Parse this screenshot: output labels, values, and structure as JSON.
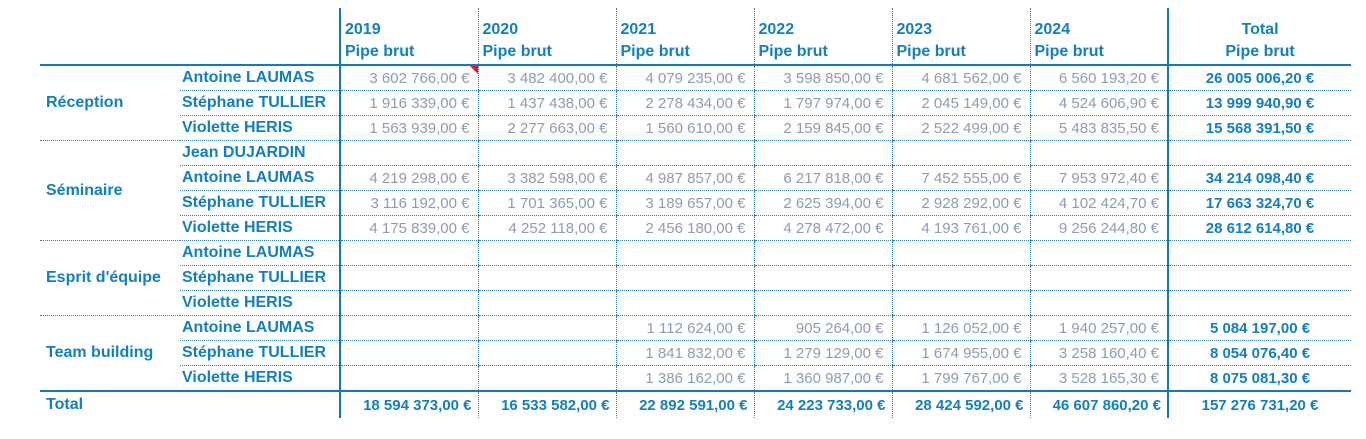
{
  "colors": {
    "accent_blue": "#117fc4",
    "value_gray_blue": "#8c9cb2",
    "solid_border": "#1577be",
    "dotted_border": "#2e80c4",
    "comment_marker_red": "#e8112d"
  },
  "header": {
    "years": [
      "2019",
      "2020",
      "2021",
      "2022",
      "2023",
      "2024"
    ],
    "measure_label": "Pipe brut",
    "total_column": {
      "label": "Total",
      "sub": "Pipe brut"
    }
  },
  "sections": [
    {
      "id": "reception",
      "category": "Réception",
      "rows": [
        {
          "name": "Antoine LAUMAS",
          "values": [
            "3 602 766,00 €",
            "3 482 400,00 €",
            "4 079 235,00 €",
            "3 598 850,00 €",
            "4 681 562,00 €",
            "6 560 193,20 €"
          ],
          "total": "26 005 006,20 €",
          "comment_cell": 0
        },
        {
          "name": "Stéphane TULLIER",
          "values": [
            "1 916 339,00 €",
            "1 437 438,00 €",
            "2 278 434,00 €",
            "1 797 974,00 €",
            "2 045 149,00 €",
            "4 524 606,90 €"
          ],
          "total": "13 999 940,90 €"
        },
        {
          "name": "Violette HERIS",
          "values": [
            "1 563 939,00 €",
            "2 277 663,00 €",
            "1 560 610,00 €",
            "2 159 845,00 €",
            "2 522 499,00 €",
            "5 483 835,50 €"
          ],
          "total": "15 568 391,50 €"
        }
      ]
    },
    {
      "id": "seminaire",
      "category": "Séminaire",
      "rows": [
        {
          "name": "Jean DUJARDIN",
          "values": [
            "",
            "",
            "",
            "",
            "",
            ""
          ],
          "total": ""
        },
        {
          "name": "Antoine LAUMAS",
          "values": [
            "4 219 298,00 €",
            "3 382 598,00 €",
            "4 987 857,00 €",
            "6 217 818,00 €",
            "7 452 555,00 €",
            "7 953 972,40 €"
          ],
          "total": "34 214 098,40 €"
        },
        {
          "name": "Stéphane TULLIER",
          "values": [
            "3 116 192,00 €",
            "1 701 365,00 €",
            "3 189 657,00 €",
            "2 625 394,00 €",
            "2 928 292,00 €",
            "4 102 424,70 €"
          ],
          "total": "17 663 324,70 €"
        },
        {
          "name": "Violette HERIS",
          "values": [
            "4 175 839,00 €",
            "4 252 118,00 €",
            "2 456 180,00 €",
            "4 278 472,00 €",
            "4 193 761,00 €",
            "9 256 244,80 €"
          ],
          "total": "28 612 614,80 €"
        }
      ]
    },
    {
      "id": "esprit-d-equipe",
      "category": "Esprit d'équipe",
      "rows": [
        {
          "name": "Antoine LAUMAS",
          "values": [
            "",
            "",
            "",
            "",
            "",
            ""
          ],
          "total": ""
        },
        {
          "name": "Stéphane TULLIER",
          "values": [
            "",
            "",
            "",
            "",
            "",
            ""
          ],
          "total": ""
        },
        {
          "name": "Violette HERIS",
          "values": [
            "",
            "",
            "",
            "",
            "",
            ""
          ],
          "total": ""
        }
      ]
    },
    {
      "id": "team-building",
      "category": "Team building",
      "rows": [
        {
          "name": "Antoine LAUMAS",
          "values": [
            "",
            "",
            "1 112 624,00 €",
            "905 264,00 €",
            "1 126 052,00 €",
            "1 940 257,00 €"
          ],
          "total": "5 084 197,00 €"
        },
        {
          "name": "Stéphane TULLIER",
          "values": [
            "",
            "",
            "1 841 832,00 €",
            "1 279 129,00 €",
            "1 674 955,00 €",
            "3 258 160,40 €"
          ],
          "total": "8 054 076,40 €"
        },
        {
          "name": "Violette HERIS",
          "values": [
            "",
            "",
            "1 386 162,00 €",
            "1 360 987,00 €",
            "1 799 767,00 €",
            "3 528 165,30 €"
          ],
          "total": "8 075 081,30 €"
        }
      ]
    }
  ],
  "grand_total": {
    "label": "Total",
    "values": [
      "18 594 373,00 €",
      "16 533 582,00 €",
      "22 892 591,00 €",
      "24 223 733,00 €",
      "28 424 592,00 €",
      "46 607 860,20 €"
    ],
    "total": "157 276 731,20 €"
  }
}
